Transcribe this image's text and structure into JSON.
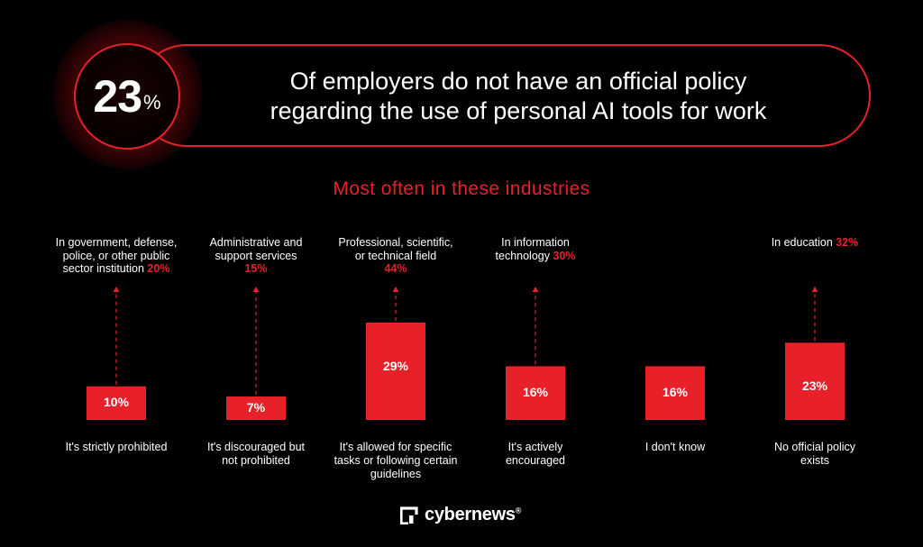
{
  "header": {
    "big_number": "23",
    "big_unit": "%",
    "statement_line1": "Of employers do not have an official policy",
    "statement_line2": "regarding the use of personal AI tools for work"
  },
  "subtitle": "Most often in these industries",
  "colors": {
    "accent": "#e8202a",
    "background": "#000000",
    "text": "#ffffff"
  },
  "chart_data": {
    "type": "bar",
    "categories": [
      "It's strictly prohibited",
      "It's discouraged but not prohibited",
      "It's allowed for specific tasks or following certain guidelines",
      "It's actively encouraged",
      "I don't know",
      "No official policy exists"
    ],
    "values": [
      10,
      7,
      29,
      16,
      16,
      23
    ],
    "value_labels": [
      "10%",
      "7%",
      "29%",
      "16%",
      "16%",
      "23%"
    ],
    "bottom_labels": [
      [
        "It's strictly prohibited"
      ],
      [
        "It's discouraged but",
        "not prohibited"
      ],
      [
        "It's allowed for specific",
        "tasks or following certain",
        "guidelines"
      ],
      [
        "It's actively",
        "encouraged"
      ],
      [
        "I don't know"
      ],
      [
        "No official policy",
        "exists"
      ]
    ],
    "industries": [
      {
        "lines": [
          "In government, defense,",
          "police, or other public",
          "sector institution"
        ],
        "pct": "20%"
      },
      {
        "lines": [
          "Administrative and",
          "support services"
        ],
        "pct": "15%"
      },
      {
        "lines": [
          "Professional, scientific,",
          "or technical field"
        ],
        "pct": "44%"
      },
      {
        "lines": [
          "In information",
          "technology"
        ],
        "pct": "30%"
      },
      null,
      {
        "lines": [
          "In education"
        ],
        "pct": "32%"
      }
    ],
    "ylim": [
      0,
      29
    ]
  },
  "brand": {
    "name": "cybernews",
    "mark": "®"
  }
}
